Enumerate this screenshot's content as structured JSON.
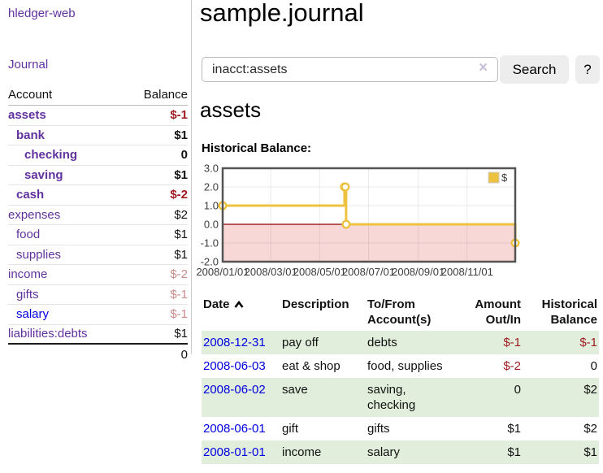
{
  "app": {
    "title": "hledger-web"
  },
  "colors": {
    "link_purple": "#61329e",
    "link_blue": "#0000e0",
    "negative_strong": "#9e1a1f",
    "negative_soft": "#c98c8c",
    "row_green": "#e1eedb",
    "button_bg": "#ededed"
  },
  "sidebar": {
    "journal_label": "Journal",
    "accounts_table": {
      "header_account": "Account",
      "header_balance": "Balance",
      "rows": [
        {
          "label": "assets",
          "balance": "$-1",
          "indent": 0,
          "bold": true,
          "balance_style": "neg-strong",
          "link_style": "purple"
        },
        {
          "label": "bank",
          "balance": "$1",
          "indent": 1,
          "bold": true,
          "balance_style": "normal",
          "link_style": "purple"
        },
        {
          "label": "checking",
          "balance": "0",
          "indent": 2,
          "bold": true,
          "balance_style": "normal",
          "link_style": "purple"
        },
        {
          "label": "saving",
          "balance": "$1",
          "indent": 2,
          "bold": true,
          "balance_style": "normal",
          "link_style": "purple"
        },
        {
          "label": "cash",
          "balance": "$-2",
          "indent": 1,
          "bold": true,
          "balance_style": "neg-strong",
          "link_style": "purple"
        },
        {
          "label": "expenses",
          "balance": "$2",
          "indent": 0,
          "bold": false,
          "balance_style": "normal",
          "link_style": "purple"
        },
        {
          "label": "food",
          "balance": "$1",
          "indent": 1,
          "bold": false,
          "balance_style": "normal",
          "link_style": "purple"
        },
        {
          "label": "supplies",
          "balance": "$1",
          "indent": 1,
          "bold": false,
          "balance_style": "normal",
          "link_style": "purple"
        },
        {
          "label": "income",
          "balance": "$-2",
          "indent": 0,
          "bold": false,
          "balance_style": "neg-soft",
          "link_style": "purple"
        },
        {
          "label": "gifts",
          "balance": "$-1",
          "indent": 1,
          "bold": false,
          "balance_style": "neg-soft",
          "link_style": "purple"
        },
        {
          "label": "salary",
          "balance": "$-1",
          "indent": 1,
          "bold": false,
          "balance_style": "neg-soft",
          "link_style": "blue"
        },
        {
          "label": "liabilities:debts",
          "balance": "$1",
          "indent": 0,
          "bold": false,
          "balance_style": "normal",
          "link_style": "purple"
        }
      ],
      "total": "0"
    }
  },
  "main": {
    "title": "sample.journal",
    "search": {
      "value": "inacct:assets",
      "clear_icon": "×",
      "button_label": "Search",
      "help_label": "?"
    },
    "section_title": "assets",
    "chart_label": "Historical Balance:"
  },
  "chart_data": {
    "type": "line",
    "title": "Historical Balance:",
    "legend": [
      {
        "label": "$",
        "color": "#edc240"
      }
    ],
    "legend_position": "top-right",
    "x_type": "date",
    "x_range_days": [
      0,
      365
    ],
    "x_ticks": [
      {
        "label": "2008/01/01",
        "day": 0
      },
      {
        "label": "2008/03/01",
        "day": 60
      },
      {
        "label": "2008/05/01",
        "day": 121
      },
      {
        "label": "2008/07/01",
        "day": 182
      },
      {
        "label": "2008/09/01",
        "day": 244
      },
      {
        "label": "2008/11/01",
        "day": 305
      }
    ],
    "ylim": [
      -2,
      3
    ],
    "y_ticks": [
      3.0,
      2.0,
      1.0,
      0.0,
      -1.0,
      -2.0
    ],
    "grid": true,
    "step": true,
    "negative_region_shaded": true,
    "series": [
      {
        "name": "$",
        "points": [
          {
            "date": "2008-01-01",
            "day": 0,
            "value": 1
          },
          {
            "date": "2008-06-01",
            "day": 152,
            "value": 2
          },
          {
            "date": "2008-06-02",
            "day": 153,
            "value": 2
          },
          {
            "date": "2008-06-03",
            "day": 154,
            "value": 0
          },
          {
            "date": "2008-12-31",
            "day": 365,
            "value": -1
          }
        ]
      }
    ],
    "colors": {
      "line": "#edc240",
      "point_fill": "#ffffff",
      "negative_fill": "#f8d7d7",
      "zero_line": "#8b0000",
      "border": "#545454",
      "grid": "rgba(0,0,0,0.08)",
      "text": "#3c3c3c"
    }
  },
  "transactions": {
    "headers": {
      "date": "Date",
      "description": "Description",
      "tofrom_line1": "To/From",
      "tofrom_line2": "Account(s)",
      "amount_line1": "Amount",
      "amount_line2": "Out/In",
      "hist_line1": "Historical",
      "hist_line2": "Balance"
    },
    "rows": [
      {
        "date": "2008-12-31",
        "description": "pay off",
        "accounts": "debts",
        "amount": "$-1",
        "amount_negative": true,
        "balance": "$-1",
        "balance_negative": true
      },
      {
        "date": "2008-06-03",
        "description": "eat & shop",
        "accounts": "food, supplies",
        "amount": "$-2",
        "amount_negative": true,
        "balance": "0",
        "balance_negative": false
      },
      {
        "date": "2008-06-02",
        "description": "save",
        "accounts": "saving, checking",
        "amount": "0",
        "amount_negative": false,
        "balance": "$2",
        "balance_negative": false
      },
      {
        "date": "2008-06-01",
        "description": "gift",
        "accounts": "gifts",
        "amount": "$1",
        "amount_negative": false,
        "balance": "$2",
        "balance_negative": false
      },
      {
        "date": "2008-01-01",
        "description": "income",
        "accounts": "salary",
        "amount": "$1",
        "amount_negative": false,
        "balance": "$1",
        "balance_negative": false
      }
    ]
  }
}
